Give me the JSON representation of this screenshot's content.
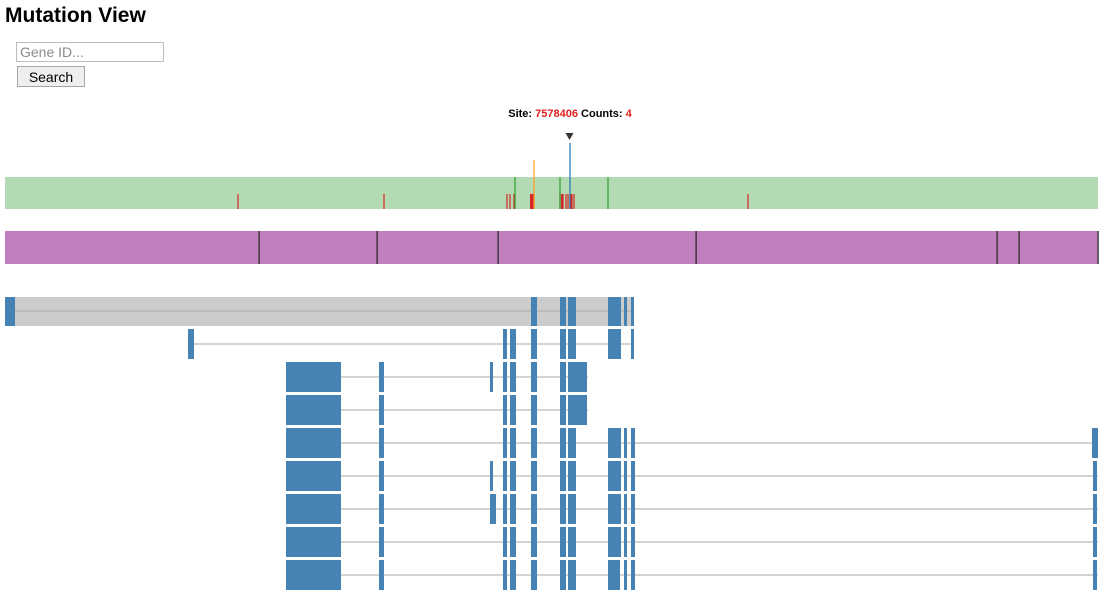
{
  "page": {
    "title": "Mutation View"
  },
  "search": {
    "placeholder": "Gene ID...",
    "value": "",
    "button_label": "Search"
  },
  "tooltip": {
    "site_label": "Site:",
    "site_value": "7578406",
    "counts_label": "Counts:",
    "counts_value": "4"
  },
  "colors": {
    "mutation_track": "#b3dab2",
    "domain_track": "#bf7fbf",
    "gene_body": "#cccccc",
    "exon": "#4682b4",
    "intron_line": "#aaaaaa",
    "missense_tick": "#d62728",
    "orange_tick": "#ff9f1a",
    "green_tick": "#2ca02c",
    "blue_tick": "#1f77b4",
    "pointer": "#333333"
  }
}
